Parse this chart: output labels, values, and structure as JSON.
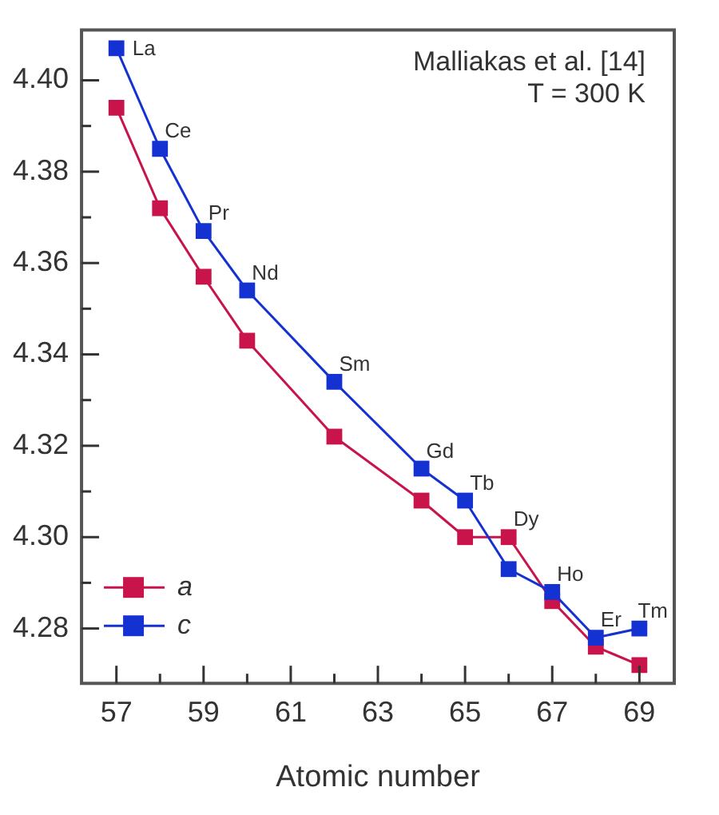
{
  "chart_data": {
    "type": "line",
    "xlabel": "Atomic number",
    "x": [
      57,
      58,
      59,
      60,
      62,
      64,
      65,
      66,
      67,
      68,
      69
    ],
    "series": [
      {
        "name": "a",
        "color": "#c8144a",
        "values": [
          4.394,
          4.372,
          4.357,
          4.343,
          4.322,
          4.308,
          4.3,
          4.3,
          4.286,
          4.276,
          4.272
        ]
      },
      {
        "name": "c",
        "color": "#1432d2",
        "values": [
          4.407,
          4.385,
          4.367,
          4.354,
          4.334,
          4.315,
          4.308,
          4.293,
          4.288,
          4.278,
          4.28
        ]
      }
    ],
    "xlim": [
      56.2,
      69.8
    ],
    "ylim": [
      4.268,
      4.411
    ],
    "xticks": [
      57,
      {
        "value": 58,
        "label": null
      },
      59,
      {
        "value": 60,
        "label": null
      },
      61,
      {
        "value": 62,
        "label": null
      },
      63,
      {
        "value": 64,
        "label": null
      },
      65,
      {
        "value": 66,
        "label": null
      },
      67,
      {
        "value": 68,
        "label": null
      },
      69
    ],
    "yticks": [
      {
        "value": 4.28,
        "label": "4.28"
      },
      {
        "value": 4.29,
        "label": null
      },
      {
        "value": 4.3,
        "label": "4.30"
      },
      {
        "value": 4.31,
        "label": null
      },
      {
        "value": 4.32,
        "label": "4.32"
      },
      {
        "value": 4.33,
        "label": null
      },
      {
        "value": 4.34,
        "label": "4.34"
      },
      {
        "value": 4.35,
        "label": null
      },
      {
        "value": 4.36,
        "label": "4.36"
      },
      {
        "value": 4.37,
        "label": null
      },
      {
        "value": 4.38,
        "label": "4.38"
      },
      {
        "value": 4.39,
        "label": null
      },
      {
        "value": 4.4,
        "label": "4.40"
      }
    ],
    "marker": "square",
    "legend": "bottom left",
    "grid": false,
    "annotations": [
      "Malliakas et al. [14]",
      "T = 300 K",
      {
        "text": "La",
        "x": 57,
        "y": 4.407
      },
      {
        "text": "Ce",
        "x": 58,
        "y": 4.385
      },
      {
        "text": "Pr",
        "x": 59,
        "y": 4.367
      },
      {
        "text": "Nd",
        "x": 60,
        "y": 4.354
      },
      {
        "text": "Sm",
        "x": 62,
        "y": 4.334
      },
      {
        "text": "Gd",
        "x": 64,
        "y": 4.315
      },
      {
        "text": "Tb",
        "x": 65,
        "y": 4.308
      },
      {
        "text": "Dy",
        "x": 66,
        "y": 4.3
      },
      {
        "text": "Ho",
        "x": 67,
        "y": 4.288
      },
      {
        "text": "Er",
        "x": 68,
        "y": 4.278
      },
      {
        "text": "Tm",
        "x": 69,
        "y": 4.28
      }
    ]
  }
}
